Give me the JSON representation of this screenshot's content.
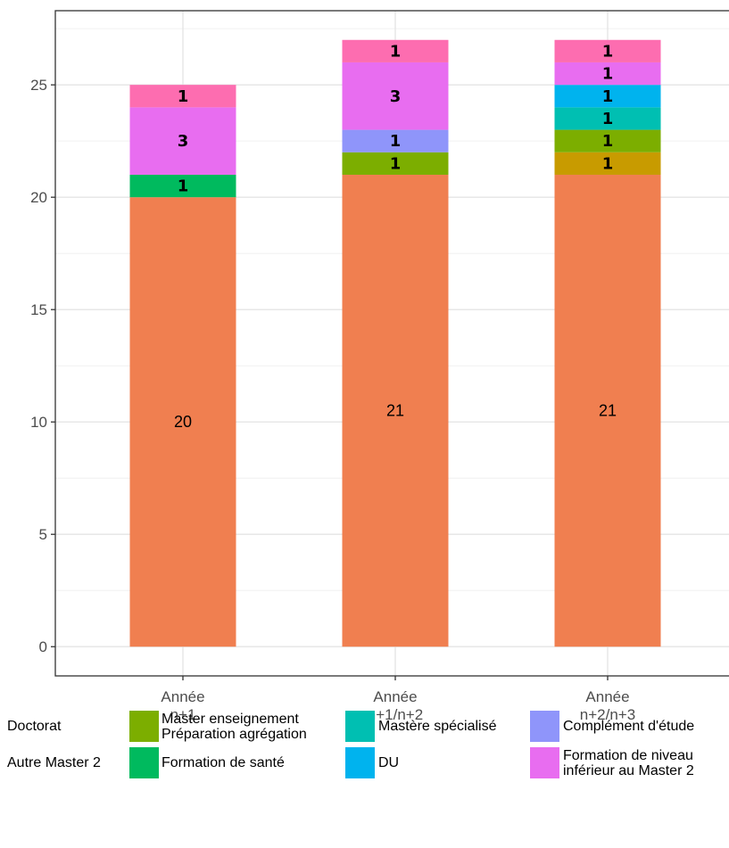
{
  "chart_data": {
    "type": "bar",
    "stacked": true,
    "categories": [
      "Année\nn+1",
      "Année\nn+1/n+2",
      "Année\nn+2/n+3"
    ],
    "ylim": [
      -1.3,
      28.3
    ],
    "yticks": [
      0,
      5,
      10,
      15,
      20,
      25
    ],
    "grid": true,
    "legend_position": "bottom",
    "series": [
      {
        "name": "Doctorat",
        "color": "#F07F50",
        "values": [
          20,
          21,
          21
        ],
        "in_legend": false
      },
      {
        "name": "Autre Master 2",
        "color": "#C89B00",
        "values": [
          0,
          0,
          1
        ],
        "in_legend": false
      },
      {
        "name": "Master enseignement\nPréparation agrégation",
        "color": "#7CAE00",
        "values": [
          0,
          1,
          1
        ]
      },
      {
        "name": "Formation de santé",
        "color": "#00BA5E",
        "values": [
          1,
          0,
          0
        ]
      },
      {
        "name": "Mastère spécialisé",
        "color": "#00BFB2",
        "values": [
          0,
          0,
          1
        ]
      },
      {
        "name": "DU",
        "color": "#00B3EE",
        "values": [
          0,
          0,
          1
        ]
      },
      {
        "name": "Complément d'étude",
        "color": "#8F95FA",
        "values": [
          0,
          1,
          0
        ]
      },
      {
        "name": "Formation de niveau\ninférieur au Master 2",
        "color": "#E86DF0",
        "values": [
          3,
          3,
          1
        ]
      },
      {
        "name": "",
        "color": "#FD6DB0",
        "values": [
          1,
          1,
          1
        ],
        "in_legend": false
      }
    ],
    "legend_text_only": [
      "Doctorat",
      "Autre Master 2"
    ]
  }
}
